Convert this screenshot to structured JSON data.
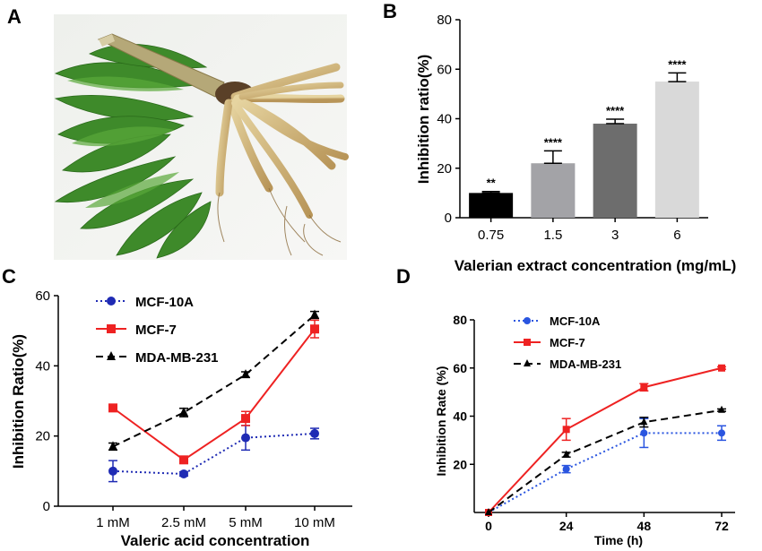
{
  "panels": {
    "A": "A",
    "B": "B",
    "C": "C",
    "D": "D"
  },
  "photo": {
    "icon": "valerian-plant-photo"
  },
  "chart_data": [
    {
      "panel": "B",
      "type": "bar",
      "xlabel": "Valerian extract concentration (mg/mL)",
      "ylabel": "Inhibition ratio(%)",
      "ylim": [
        0,
        80
      ],
      "yticks": [
        0,
        20,
        40,
        60,
        80
      ],
      "categories": [
        "0.75",
        "1.5",
        "3",
        "6"
      ],
      "values": [
        10,
        22,
        38,
        55
      ],
      "errors": [
        0.6,
        5,
        1.8,
        3.5
      ],
      "significance": [
        "**",
        "****",
        "****",
        "****"
      ],
      "bar_colors": [
        "#000000",
        "#a3a3a7",
        "#6d6d6d",
        "#d9d9d9"
      ]
    },
    {
      "panel": "C",
      "type": "line",
      "xlabel": "Valeric acid concentration",
      "ylabel": "Inhibition Ratio(%)",
      "ylim": [
        0,
        60
      ],
      "yticks": [
        0,
        20,
        40,
        60
      ],
      "categories": [
        "1 mM",
        "2.5 mM",
        "5 mM",
        "10 mM"
      ],
      "legend_position": "top-left",
      "series": [
        {
          "name": "MCF-10A",
          "values": [
            10,
            9.2,
            19.5,
            20.7
          ],
          "errors": [
            3,
            0.6,
            3.5,
            1.5
          ],
          "color": "#1f2bb4",
          "marker": "circle",
          "dash": "dotted"
        },
        {
          "name": "MCF-7",
          "values": [
            28,
            13.2,
            25,
            50.5
          ],
          "errors": [
            0.8,
            0.6,
            2,
            2.5
          ],
          "color": "#ee2222",
          "marker": "square",
          "dash": "solid"
        },
        {
          "name": "MDA-MB-231",
          "values": [
            17,
            26.7,
            37.5,
            54.5
          ],
          "errors": [
            1,
            1.2,
            0.8,
            1
          ],
          "color": "#000000",
          "marker": "triangle",
          "dash": "dashed"
        }
      ]
    },
    {
      "panel": "D",
      "type": "line",
      "xlabel": "Time (h)",
      "ylabel": "Inhibition Rate (%)",
      "ylim": [
        0,
        80
      ],
      "yticks": [
        20,
        40,
        60,
        80
      ],
      "x": [
        0,
        24,
        48,
        72
      ],
      "xticks": [
        "0",
        "24",
        "48",
        "72"
      ],
      "legend_position": "top-left",
      "series": [
        {
          "name": "MCF-10A",
          "values": [
            0,
            18,
            33,
            33
          ],
          "errors": [
            0,
            1.5,
            6,
            3
          ],
          "color": "#2a55e0",
          "marker": "circle",
          "dash": "dotted"
        },
        {
          "name": "MCF-7",
          "values": [
            0,
            34.5,
            52,
            60
          ],
          "errors": [
            0,
            4.5,
            1.5,
            0.5
          ],
          "color": "#ee2222",
          "marker": "square",
          "dash": "solid"
        },
        {
          "name": "MDA-MB-231",
          "values": [
            0,
            24,
            37.5,
            42.5
          ],
          "errors": [
            0,
            1,
            2,
            0.5
          ],
          "color": "#000000",
          "marker": "triangle",
          "dash": "dashed"
        }
      ]
    }
  ]
}
